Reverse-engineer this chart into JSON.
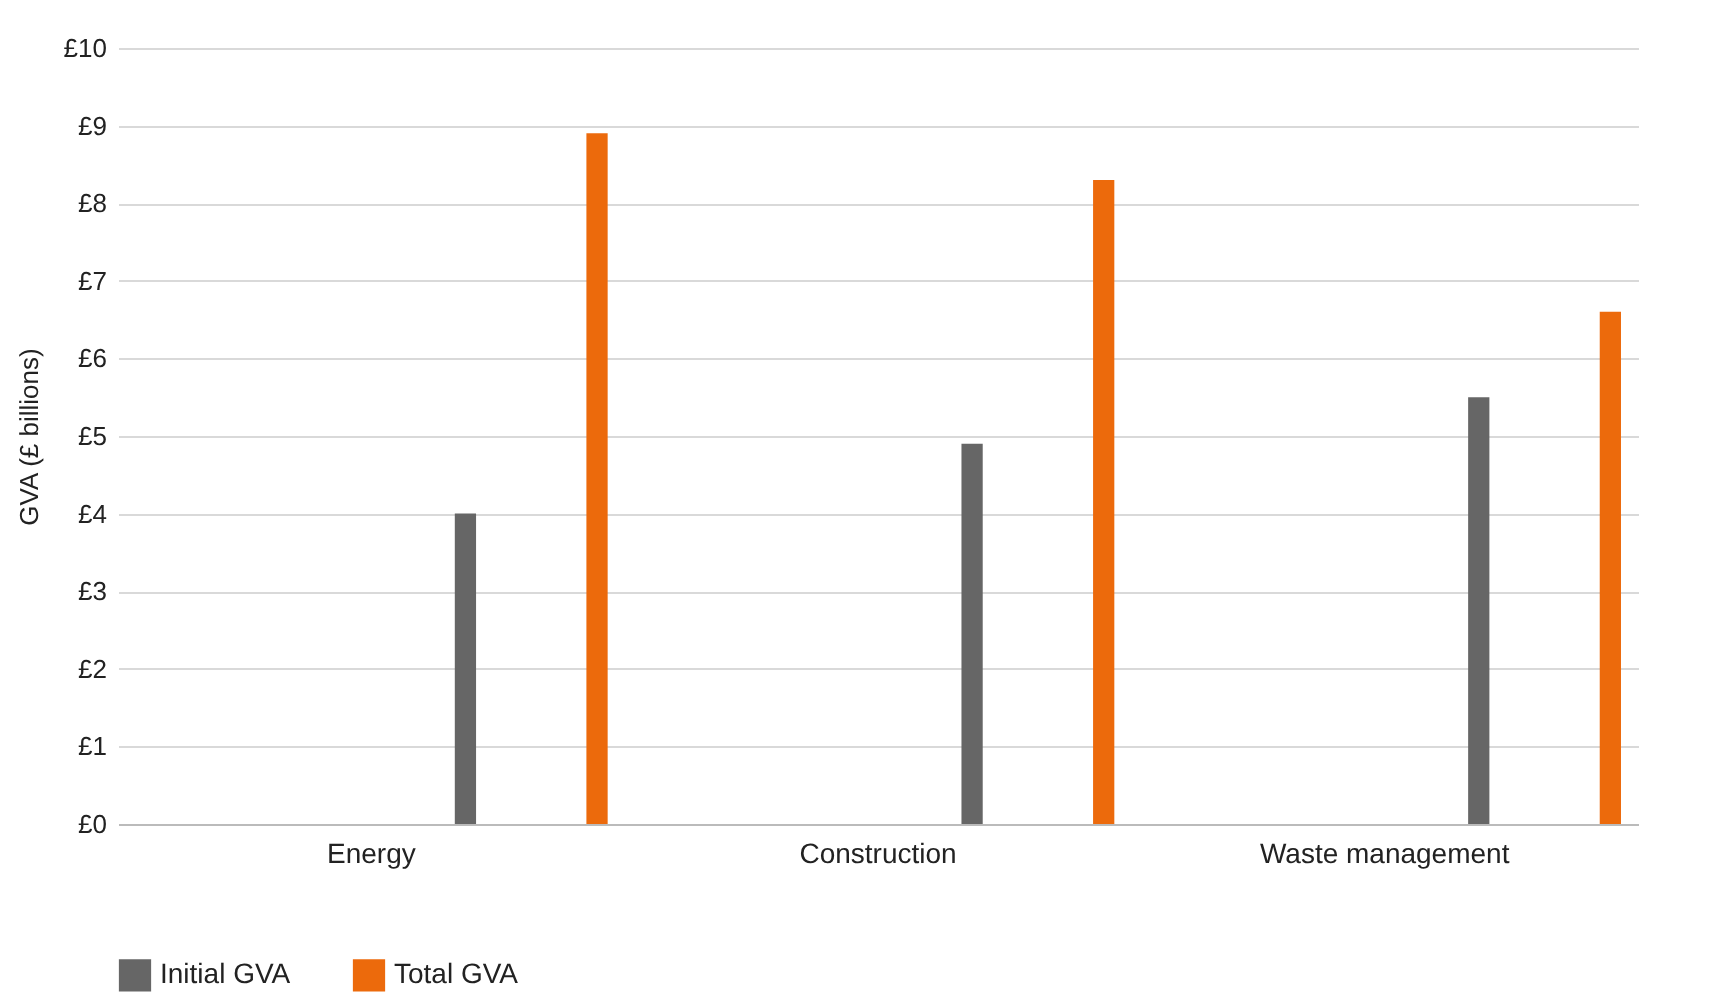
{
  "chart_data": {
    "type": "bar",
    "ylabel": "GVA (£ billions)",
    "categories": [
      "Energy",
      "Construction",
      "Waste management"
    ],
    "series": [
      {
        "name": "Initial GVA",
        "color": "#666666",
        "values": [
          4.0,
          4.9,
          5.5
        ]
      },
      {
        "name": "Total GVA",
        "color": "#ec6a0c",
        "values": [
          8.9,
          8.3,
          6.6
        ]
      }
    ],
    "ylim": [
      0,
      10
    ],
    "yticks": [
      {
        "value": 0,
        "label": "£0"
      },
      {
        "value": 1,
        "label": "£1"
      },
      {
        "value": 2,
        "label": "£2"
      },
      {
        "value": 3,
        "label": "£3"
      },
      {
        "value": 4,
        "label": "£4"
      },
      {
        "value": 5,
        "label": "£5"
      },
      {
        "value": 6,
        "label": "£6"
      },
      {
        "value": 7,
        "label": "£7"
      },
      {
        "value": 8,
        "label": "£8"
      },
      {
        "value": 9,
        "label": "£9"
      },
      {
        "value": 10,
        "label": "£10"
      }
    ],
    "grid": "y",
    "legend": "bottom left"
  }
}
